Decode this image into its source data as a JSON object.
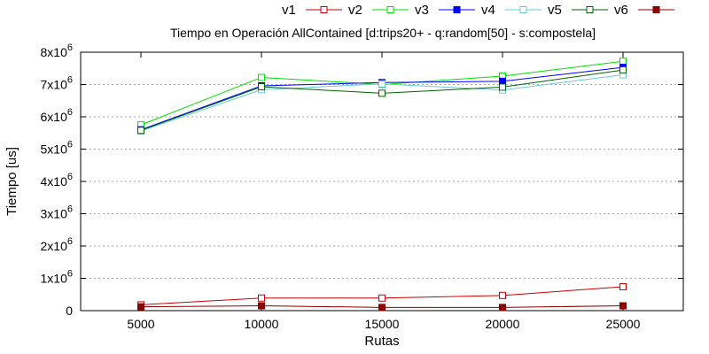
{
  "chart_data": {
    "type": "line",
    "title": "Tiempo en Operación AllContained [d:trips20+ - q:random[50] - s:compostela]",
    "xlabel": "Rutas",
    "ylabel": "Tiempo [us]",
    "categories": [
      5000,
      10000,
      15000,
      20000,
      25000
    ],
    "xlim": [
      2500,
      27500
    ],
    "ylim": [
      0,
      8000000
    ],
    "y_ticks": [
      {
        "value": 0,
        "base": "0",
        "exp": ""
      },
      {
        "value": 1000000,
        "base": "1x10",
        "exp": "6"
      },
      {
        "value": 2000000,
        "base": "2x10",
        "exp": "6"
      },
      {
        "value": 3000000,
        "base": "3x10",
        "exp": "6"
      },
      {
        "value": 4000000,
        "base": "4x10",
        "exp": "6"
      },
      {
        "value": 5000000,
        "base": "5x10",
        "exp": "6"
      },
      {
        "value": 6000000,
        "base": "6x10",
        "exp": "6"
      },
      {
        "value": 7000000,
        "base": "7x10",
        "exp": "6"
      },
      {
        "value": 8000000,
        "base": "8x10",
        "exp": "6"
      }
    ],
    "grid": true,
    "legend_position": "top-right",
    "series": [
      {
        "name": "v1",
        "color": "#cc0000",
        "marker": "open-square",
        "values": [
          180000,
          390000,
          390000,
          470000,
          740000
        ]
      },
      {
        "name": "v2",
        "color": "#00e000",
        "marker": "open-square",
        "values": [
          5750000,
          7220000,
          7000000,
          7260000,
          7720000
        ]
      },
      {
        "name": "v3",
        "color": "#0000ff",
        "marker": "filled-square",
        "values": [
          5600000,
          6960000,
          7060000,
          7100000,
          7530000
        ]
      },
      {
        "name": "v4",
        "color": "#66ccdd",
        "marker": "open-square",
        "values": [
          5560000,
          6840000,
          7020000,
          6830000,
          7300000
        ]
      },
      {
        "name": "v5",
        "color": "#006400",
        "marker": "open-square",
        "values": [
          5580000,
          6930000,
          6730000,
          6920000,
          7450000
        ]
      },
      {
        "name": "v6",
        "color": "#8b0000",
        "marker": "filled-square",
        "values": [
          120000,
          150000,
          100000,
          100000,
          150000
        ]
      }
    ]
  }
}
